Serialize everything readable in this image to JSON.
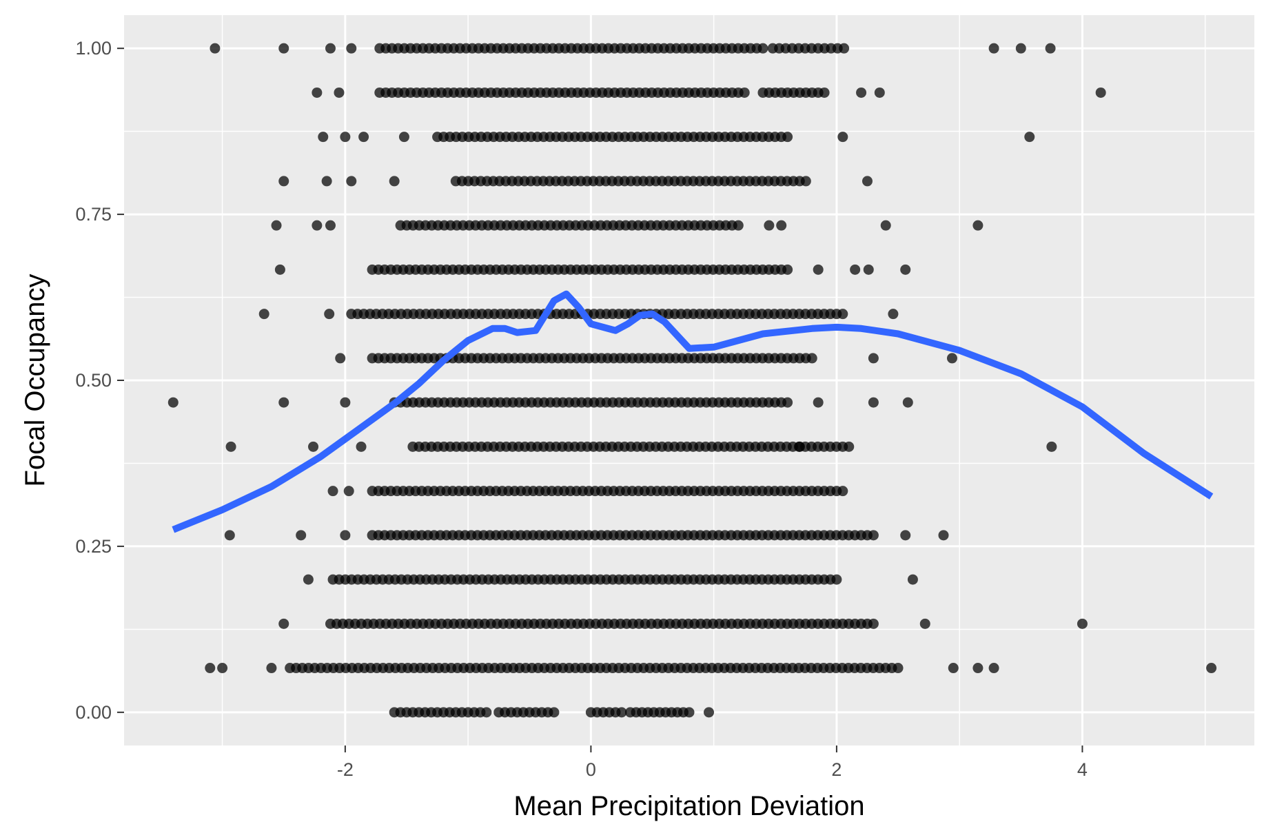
{
  "chart_data": {
    "type": "scatter",
    "xlabel": "Mean Precipitation Deviation",
    "ylabel": "Focal Occupancy",
    "xlim": [
      -3.8,
      5.4
    ],
    "ylim": [
      -0.05,
      1.05
    ],
    "x_ticks": [
      -2,
      0,
      2,
      4
    ],
    "x_tick_labels": [
      "-2",
      "0",
      "2",
      "4"
    ],
    "y_ticks": [
      0,
      0.25,
      0.5,
      0.75,
      1
    ],
    "y_tick_labels": [
      "0.00",
      "0.25",
      "0.50",
      "0.75",
      "1.00"
    ],
    "grid": true,
    "legend": "none",
    "colors": {
      "panel": "#ebebeb",
      "grid": "#ffffff",
      "points": "#000000",
      "smooth": "#3366ff"
    },
    "series": [
      {
        "kind": "points",
        "rows": [
          {
            "y": 1.0,
            "x_min": -3.06,
            "x_max": 3.74,
            "isolated": [
              -3.06,
              -2.5,
              -2.12,
              -1.95,
              3.28,
              3.5,
              3.74
            ],
            "dense": [
              [
                -1.72,
                1.4
              ],
              [
                1.48,
                2.06
              ]
            ]
          },
          {
            "y": 0.9333,
            "x_min": -2.23,
            "x_max": 4.15,
            "isolated": [
              -2.23,
              -2.05,
              2.2,
              2.35,
              4.15
            ],
            "dense": [
              [
                -1.72,
                1.25
              ],
              [
                1.4,
                1.9
              ]
            ]
          },
          {
            "y": 0.8667,
            "x_min": -2.18,
            "x_max": 3.57,
            "isolated": [
              -2.18,
              -2.0,
              -1.85,
              -1.52,
              2.05,
              3.57
            ],
            "dense": [
              [
                -1.25,
                1.6
              ]
            ]
          },
          {
            "y": 0.8,
            "x_min": -2.5,
            "x_max": 2.25,
            "isolated": [
              -2.5,
              -2.15,
              -1.95,
              -1.6,
              2.25
            ],
            "dense": [
              [
                -1.1,
                1.75
              ]
            ]
          },
          {
            "y": 0.7333,
            "x_min": -2.56,
            "x_max": 3.15,
            "isolated": [
              -2.56,
              -2.23,
              -2.12,
              1.45,
              1.55,
              2.4,
              3.15
            ],
            "dense": [
              [
                -1.55,
                1.2
              ]
            ]
          },
          {
            "y": 0.6667,
            "x_min": -2.53,
            "x_max": 2.56,
            "isolated": [
              -2.53,
              1.85,
              2.15,
              2.26,
              2.56
            ],
            "dense": [
              [
                -1.78,
                1.6
              ]
            ]
          },
          {
            "y": 0.6,
            "x_min": -2.66,
            "x_max": 2.46,
            "isolated": [
              -2.66,
              -2.13,
              2.46
            ],
            "dense": [
              [
                -1.95,
                2.05
              ]
            ]
          },
          {
            "y": 0.5333,
            "x_min": -2.04,
            "x_max": 2.94,
            "isolated": [
              -2.04,
              2.3,
              2.94
            ],
            "dense": [
              [
                -1.78,
                1.8
              ]
            ]
          },
          {
            "y": 0.4667,
            "x_min": -3.4,
            "x_max": 2.58,
            "isolated": [
              -3.4,
              -2.5,
              -2.0,
              1.85,
              2.3,
              2.58
            ],
            "dense": [
              [
                -1.6,
                1.6
              ]
            ]
          },
          {
            "y": 0.4,
            "x_min": -2.93,
            "x_max": 3.75,
            "isolated": [
              -2.93,
              -2.26,
              -1.87,
              1.7,
              3.75
            ],
            "dense": [
              [
                -1.45,
                2.1
              ]
            ]
          },
          {
            "y": 0.3333,
            "x_min": -2.1,
            "x_max": 2.05,
            "isolated": [
              -2.1,
              -1.97
            ],
            "dense": [
              [
                -1.78,
                2.05
              ]
            ]
          },
          {
            "y": 0.2667,
            "x_min": -2.94,
            "x_max": 2.87,
            "isolated": [
              -2.94,
              -2.36,
              -2.0,
              2.56,
              2.87
            ],
            "dense": [
              [
                -1.78,
                2.3
              ]
            ]
          },
          {
            "y": 0.2,
            "x_min": -2.3,
            "x_max": 2.62,
            "isolated": [
              -2.3,
              2.62
            ],
            "dense": [
              [
                -2.1,
                2.0
              ]
            ]
          },
          {
            "y": 0.1333,
            "x_min": -2.5,
            "x_max": 4.0,
            "isolated": [
              -2.5,
              2.72,
              4.0
            ],
            "dense": [
              [
                -2.12,
                2.3
              ]
            ]
          },
          {
            "y": 0.0667,
            "x_min": -3.1,
            "x_max": 5.05,
            "isolated": [
              -3.1,
              -3.0,
              -2.6,
              2.95,
              3.15,
              3.28,
              5.05
            ],
            "dense": [
              [
                -2.45,
                2.5
              ]
            ]
          },
          {
            "y": 0.0,
            "x_min": -1.6,
            "x_max": 0.96,
            "isolated": [
              0.96
            ],
            "dense": [
              [
                -1.6,
                -1.45
              ],
              [
                -1.4,
                -0.85
              ],
              [
                -0.75,
                -0.3
              ],
              [
                0.0,
                0.25
              ],
              [
                0.32,
                0.8
              ]
            ]
          }
        ]
      },
      {
        "kind": "smooth",
        "x": [
          -3.4,
          -3.0,
          -2.6,
          -2.2,
          -1.9,
          -1.6,
          -1.4,
          -1.2,
          -1.0,
          -0.8,
          -0.7,
          -0.6,
          -0.45,
          -0.3,
          -0.2,
          -0.1,
          0.0,
          0.2,
          0.3,
          0.4,
          0.5,
          0.6,
          0.8,
          1.0,
          1.4,
          1.8,
          2.0,
          2.2,
          2.5,
          3.0,
          3.5,
          4.0,
          4.5,
          5.05
        ],
        "y": [
          0.275,
          0.305,
          0.34,
          0.385,
          0.425,
          0.465,
          0.495,
          0.53,
          0.56,
          0.578,
          0.578,
          0.572,
          0.575,
          0.62,
          0.63,
          0.61,
          0.585,
          0.575,
          0.585,
          0.598,
          0.6,
          0.588,
          0.548,
          0.55,
          0.57,
          0.578,
          0.58,
          0.578,
          0.57,
          0.545,
          0.51,
          0.46,
          0.39,
          0.325
        ]
      }
    ]
  }
}
